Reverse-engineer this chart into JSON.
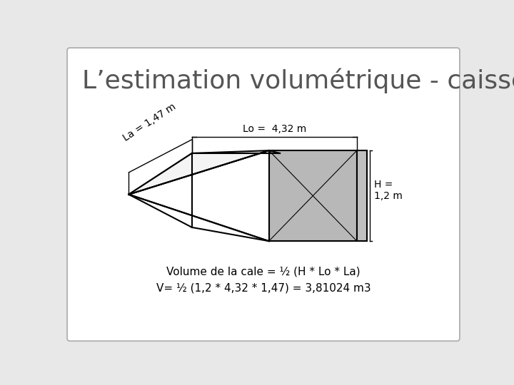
{
  "title": "L’estimation volumétrique - caisse",
  "title_fontsize": 26,
  "bg_color": "#e8e8e8",
  "box_color": "#ffffff",
  "label_la": "La = 1,47 m",
  "label_lo": "Lo =  4,32 m",
  "label_h": "H =\n1,2 m",
  "formula1": "Volume de la cale = ½ (H * Lo * La)",
  "formula2": "V= ½ (1,2 * 4,32 * 1,47) = 3,81024 m3",
  "gray_face": "#b8b8b8",
  "line_color": "#000000",
  "title_color": "#555555"
}
